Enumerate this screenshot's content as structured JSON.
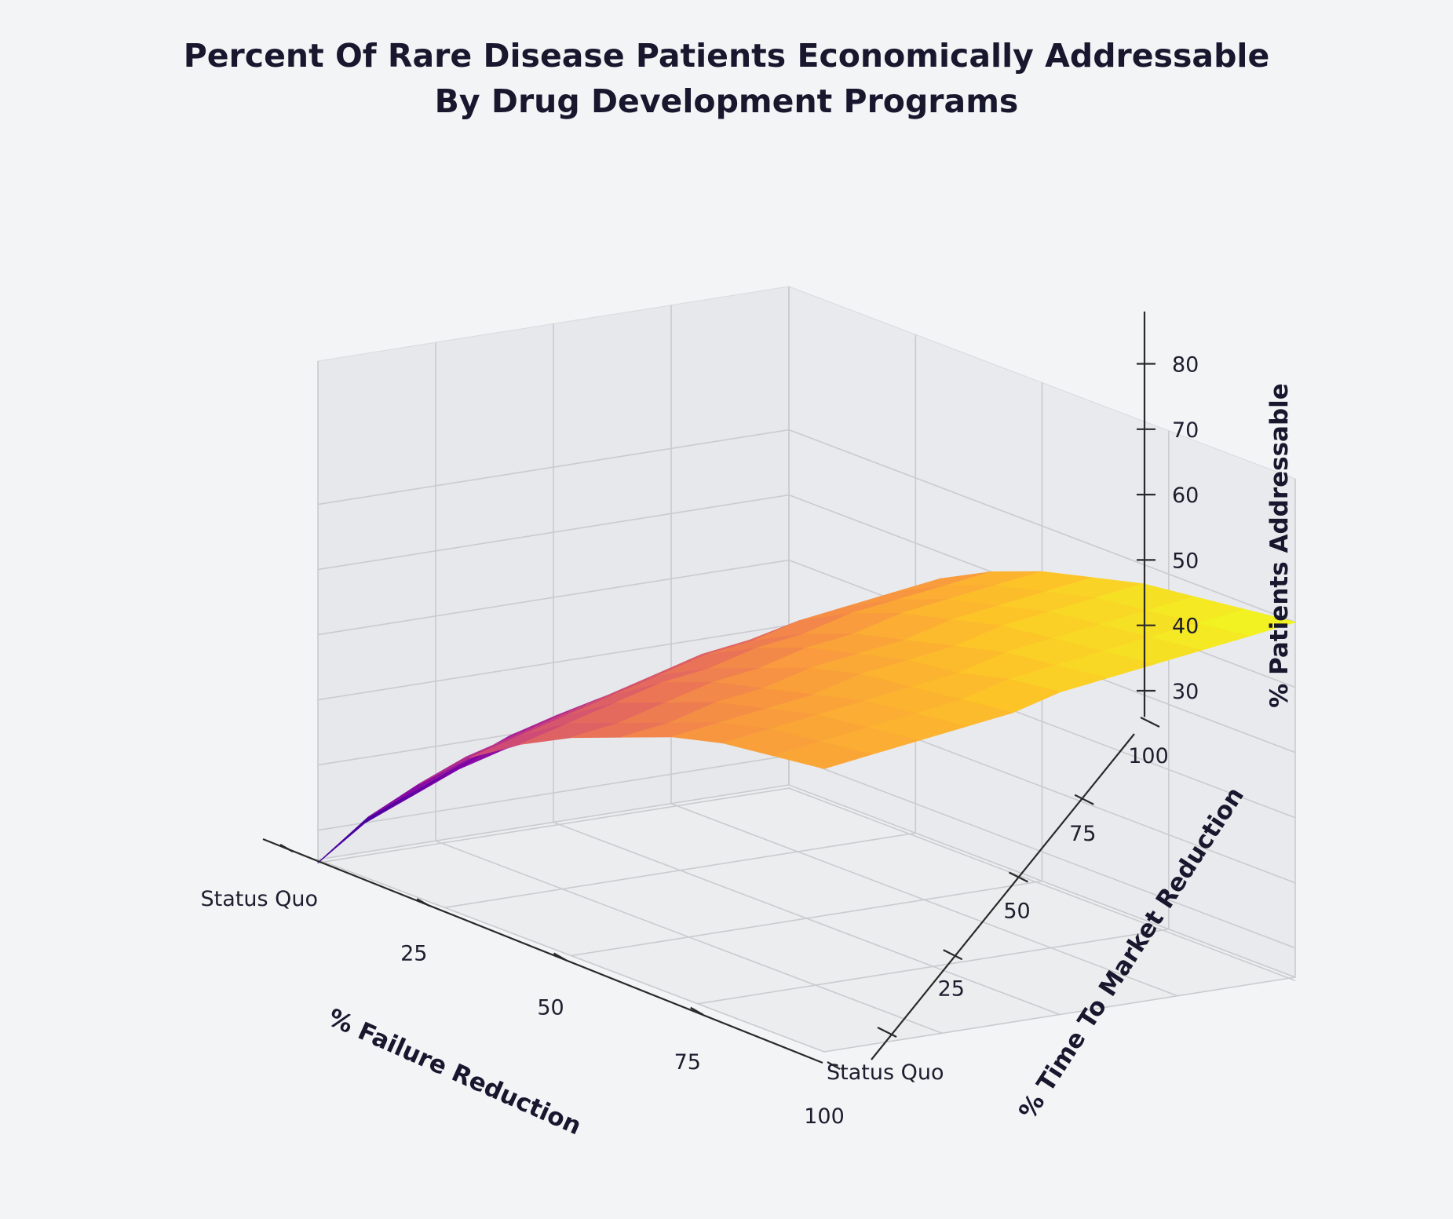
{
  "chart_data": {
    "type": "surface3d",
    "title": [
      "Percent Of Rare Disease Patients Economically Addressable",
      "By Drug Development Programs"
    ],
    "xlabel": "% Failure Reduction",
    "ylabel": "% Time To Market Reduction",
    "zlabel": "% Patients Addressable",
    "x_ticks": [
      {
        "value": 0,
        "label": "Status Quo"
      },
      {
        "value": 25,
        "label": "25"
      },
      {
        "value": 50,
        "label": "50"
      },
      {
        "value": 75,
        "label": "75"
      },
      {
        "value": 100,
        "label": "100"
      }
    ],
    "y_ticks": [
      {
        "value": 0,
        "label": "Status Quo"
      },
      {
        "value": 25,
        "label": "25"
      },
      {
        "value": 50,
        "label": "50"
      },
      {
        "value": 75,
        "label": "75"
      },
      {
        "value": 100,
        "label": "100"
      }
    ],
    "z_ticks": [
      30,
      40,
      50,
      60,
      70,
      80
    ],
    "xlim": [
      0,
      100
    ],
    "ylim": [
      0,
      100
    ],
    "zlim": [
      25,
      88
    ],
    "colormap": "plasma",
    "grid": true,
    "x": [
      0,
      10,
      20,
      30,
      40,
      50,
      60,
      70,
      80,
      90,
      100
    ],
    "y": [
      0,
      10,
      20,
      30,
      40,
      50,
      60,
      70,
      80,
      90,
      100
    ],
    "z": [
      [
        25,
        35,
        43,
        50,
        55,
        59,
        62,
        65,
        67,
        68,
        69
      ],
      [
        30,
        38,
        46,
        52,
        57,
        60,
        63,
        66,
        68,
        69,
        70
      ],
      [
        33,
        41,
        48,
        54,
        59,
        62,
        65,
        67,
        69,
        70,
        71
      ],
      [
        36,
        44,
        50,
        56,
        61,
        64,
        66,
        68,
        70,
        71,
        72
      ],
      [
        38,
        46,
        52,
        58,
        62,
        65,
        68,
        70,
        71,
        72,
        73
      ],
      [
        39,
        47,
        54,
        60,
        64,
        67,
        69,
        71,
        72,
        74,
        75
      ],
      [
        40,
        49,
        56,
        61,
        65,
        68,
        70,
        72,
        74,
        75,
        76
      ],
      [
        41,
        50,
        57,
        63,
        67,
        70,
        72,
        74,
        75,
        76,
        77
      ],
      [
        42,
        51,
        58,
        64,
        68,
        71,
        73,
        75,
        76,
        77,
        78
      ],
      [
        43,
        52,
        59,
        65,
        69,
        72,
        74,
        76,
        77,
        78,
        79
      ],
      [
        44,
        53,
        60,
        66,
        70,
        73,
        75,
        77,
        78,
        79,
        80
      ]
    ]
  }
}
